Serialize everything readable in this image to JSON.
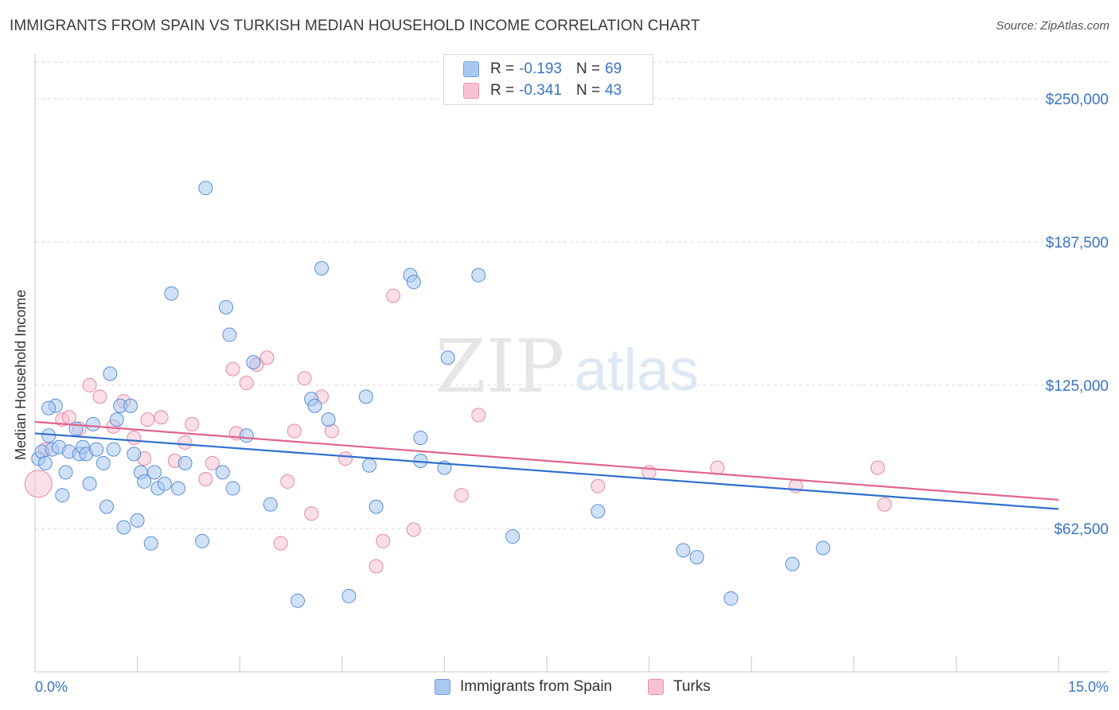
{
  "header": {
    "title": "IMMIGRANTS FROM SPAIN VS TURKISH MEDIAN HOUSEHOLD INCOME CORRELATION CHART",
    "source": "Source: ZipAtlas.com"
  },
  "watermark": {
    "zip": "ZIP",
    "atlas": "atlas"
  },
  "legend_stats": [
    {
      "r_label": "R =",
      "r_value": "-0.193",
      "n_label": "N =",
      "n_value": "69",
      "color": "#a9c8f0",
      "border": "#6e9fe0"
    },
    {
      "r_label": "R =",
      "r_value": "-0.341",
      "n_label": "N =",
      "n_value": "43",
      "color": "#f7c3d3",
      "border": "#ec8fae"
    }
  ],
  "colors": {
    "blue_fill": "#a9c8f0",
    "blue_stroke": "#5a8fd8",
    "blue_line": "#2f6fcd",
    "pink_fill": "#f7c3d3",
    "pink_stroke": "#e38aa8",
    "pink_line": "#e06490",
    "axis_text": "#3b74c6",
    "grid": "#d9d9d9"
  },
  "chart_data": {
    "type": "scatter",
    "title": "IMMIGRANTS FROM SPAIN VS TURKISH MEDIAN HOUSEHOLD INCOME CORRELATION CHART",
    "xlabel": "",
    "ylabel": "Median Household Income",
    "xlim": [
      0,
      15
    ],
    "ylim": [
      0,
      268000
    ],
    "x_tick_labels": [
      "0.0%",
      "15.0%"
    ],
    "y_ticks": [
      62500,
      125000,
      187500,
      250000
    ],
    "y_tick_labels": [
      "$62,500",
      "$125,000",
      "$187,500",
      "$250,000"
    ],
    "grid": true,
    "legend": "bottom-center",
    "series": [
      {
        "name": "Immigrants from Spain",
        "points": [
          [
            0.05,
            93000
          ],
          [
            0.1,
            96000
          ],
          [
            0.15,
            91000
          ],
          [
            0.2,
            103000
          ],
          [
            0.25,
            97000
          ],
          [
            0.3,
            116000
          ],
          [
            0.35,
            98000
          ],
          [
            0.4,
            77000
          ],
          [
            0.45,
            87000
          ],
          [
            0.5,
            96000
          ],
          [
            0.6,
            106000
          ],
          [
            0.65,
            95000
          ],
          [
            0.7,
            98000
          ],
          [
            0.75,
            95000
          ],
          [
            0.8,
            82000
          ],
          [
            0.85,
            108000
          ],
          [
            0.9,
            97000
          ],
          [
            1.0,
            91000
          ],
          [
            1.05,
            72000
          ],
          [
            1.1,
            130000
          ],
          [
            1.15,
            97000
          ],
          [
            1.2,
            110000
          ],
          [
            1.25,
            116000
          ],
          [
            1.3,
            63000
          ],
          [
            1.4,
            116000
          ],
          [
            1.45,
            95000
          ],
          [
            1.5,
            66000
          ],
          [
            1.55,
            87000
          ],
          [
            1.6,
            83000
          ],
          [
            1.7,
            56000
          ],
          [
            1.75,
            87000
          ],
          [
            1.8,
            80000
          ],
          [
            1.9,
            82000
          ],
          [
            2.0,
            165000
          ],
          [
            2.1,
            80000
          ],
          [
            2.2,
            91000
          ],
          [
            2.45,
            57000
          ],
          [
            2.5,
            211000
          ],
          [
            2.75,
            87000
          ],
          [
            2.8,
            159000
          ],
          [
            2.85,
            147000
          ],
          [
            2.9,
            80000
          ],
          [
            3.1,
            103000
          ],
          [
            3.2,
            135000
          ],
          [
            3.45,
            73000
          ],
          [
            3.85,
            31000
          ],
          [
            4.05,
            119000
          ],
          [
            4.1,
            116000
          ],
          [
            4.2,
            176000
          ],
          [
            4.3,
            110000
          ],
          [
            4.6,
            33000
          ],
          [
            4.85,
            120000
          ],
          [
            4.9,
            90000
          ],
          [
            5.0,
            72000
          ],
          [
            5.5,
            173000
          ],
          [
            5.55,
            170000
          ],
          [
            5.65,
            92000
          ],
          [
            5.65,
            102000
          ],
          [
            6.0,
            89000
          ],
          [
            6.05,
            137000
          ],
          [
            6.5,
            173000
          ],
          [
            7.0,
            59000
          ],
          [
            8.25,
            70000
          ],
          [
            9.5,
            53000
          ],
          [
            9.7,
            50000
          ],
          [
            10.2,
            32000
          ],
          [
            11.1,
            47000
          ],
          [
            11.55,
            54000
          ],
          [
            0.2,
            115000
          ]
        ],
        "trend": {
          "x": [
            0,
            15
          ],
          "y": [
            104000,
            71000
          ]
        }
      },
      {
        "name": "Turks",
        "points": [
          [
            0.05,
            82000
          ],
          [
            0.15,
            97000
          ],
          [
            0.4,
            110000
          ],
          [
            0.5,
            111000
          ],
          [
            0.65,
            106000
          ],
          [
            0.8,
            125000
          ],
          [
            0.95,
            120000
          ],
          [
            1.15,
            107000
          ],
          [
            1.3,
            118000
          ],
          [
            1.45,
            102000
          ],
          [
            1.6,
            93000
          ],
          [
            1.65,
            110000
          ],
          [
            1.85,
            111000
          ],
          [
            2.05,
            92000
          ],
          [
            2.2,
            100000
          ],
          [
            2.3,
            108000
          ],
          [
            2.5,
            84000
          ],
          [
            2.6,
            91000
          ],
          [
            2.9,
            132000
          ],
          [
            2.95,
            104000
          ],
          [
            3.1,
            126000
          ],
          [
            3.25,
            134000
          ],
          [
            3.4,
            137000
          ],
          [
            3.6,
            56000
          ],
          [
            3.7,
            83000
          ],
          [
            3.8,
            105000
          ],
          [
            3.95,
            128000
          ],
          [
            4.05,
            69000
          ],
          [
            4.2,
            120000
          ],
          [
            4.35,
            105000
          ],
          [
            4.55,
            93000
          ],
          [
            5.0,
            46000
          ],
          [
            5.1,
            57000
          ],
          [
            5.25,
            164000
          ],
          [
            5.55,
            62000
          ],
          [
            6.25,
            77000
          ],
          [
            6.5,
            112000
          ],
          [
            8.25,
            81000
          ],
          [
            9.0,
            87000
          ],
          [
            10.0,
            89000
          ],
          [
            11.15,
            81000
          ],
          [
            12.35,
            89000
          ],
          [
            12.45,
            73000
          ]
        ],
        "trend": {
          "x": [
            0,
            15
          ],
          "y": [
            109000,
            75000
          ]
        }
      }
    ]
  },
  "bottom_legend": [
    {
      "label": "Immigrants from Spain",
      "color": "#a9c8f0",
      "border": "#6e9fe0"
    },
    {
      "label": "Turks",
      "color": "#f7c3d3",
      "border": "#ec8fae"
    }
  ]
}
